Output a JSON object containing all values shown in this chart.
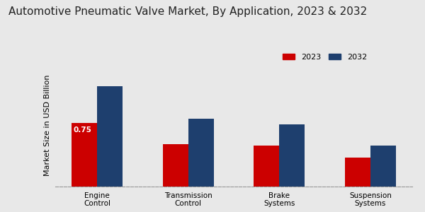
{
  "title": "Automotive Pneumatic Valve Market, By Application, 2023 & 2032",
  "ylabel": "Market Size in USD Billion",
  "categories": [
    "Engine\nControl",
    "Transmission\nControl",
    "Brake\nSystems",
    "Suspension\nSystems"
  ],
  "values_2023": [
    0.75,
    0.5,
    0.48,
    0.34
  ],
  "values_2032": [
    1.18,
    0.8,
    0.73,
    0.48
  ],
  "color_2023": "#cc0000",
  "color_2032": "#1e3f6e",
  "annotation_label": "0.75",
  "annotation_bar_index": 0,
  "background_color": "#e8e8e8",
  "bar_width": 0.28,
  "ylim": [
    0,
    1.45
  ],
  "legend_labels": [
    "2023",
    "2032"
  ],
  "title_fontsize": 11,
  "axis_label_fontsize": 8,
  "tick_fontsize": 7.5,
  "legend_fontsize": 8
}
